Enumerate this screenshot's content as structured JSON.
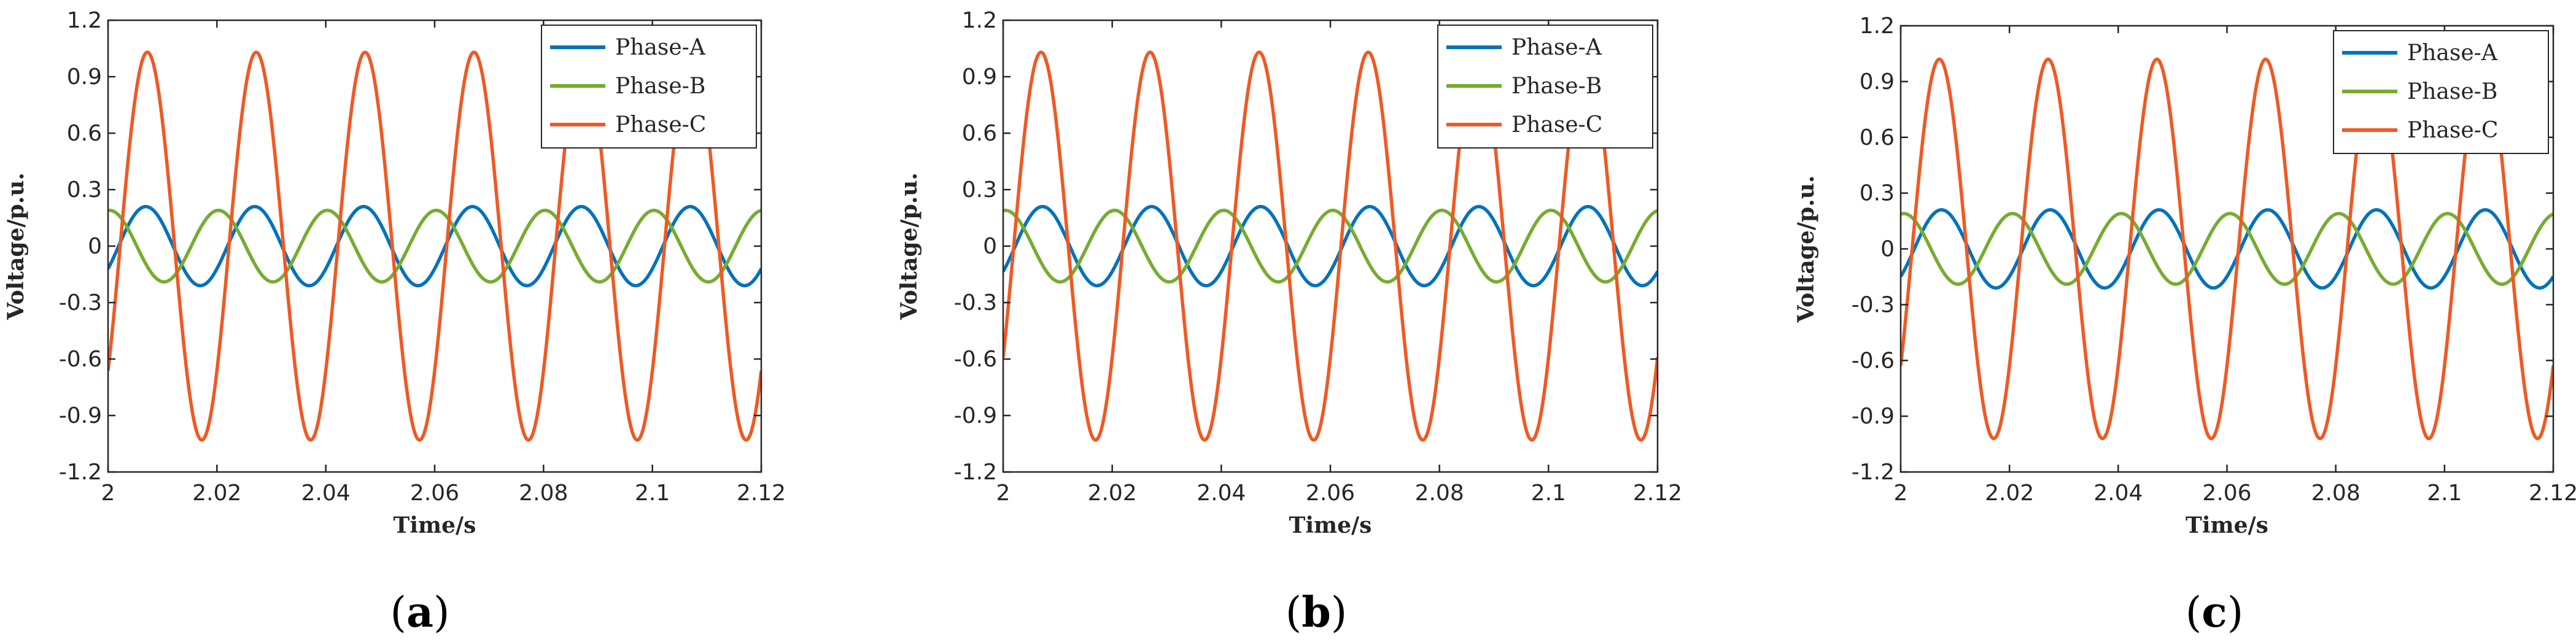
{
  "chart_data": [
    {
      "type": "line",
      "panel": "a",
      "caption": {
        "open": "(",
        "letter": "a",
        "close": ")"
      },
      "xlabel": "Time/s",
      "ylabel": "Voltage/p.u.",
      "xlim": [
        2,
        2.12
      ],
      "ylim": [
        -1.2,
        1.2
      ],
      "xticks": [
        2,
        2.02,
        2.04,
        2.06,
        2.08,
        2.1,
        2.12
      ],
      "xtick_labels": [
        "2",
        "2.02",
        "2.04",
        "2.06",
        "2.08",
        "2.1",
        "2.12"
      ],
      "yticks": [
        -1.2,
        -0.9,
        -0.6,
        -0.3,
        0,
        0.3,
        0.6,
        0.9,
        1.2
      ],
      "ytick_labels": [
        "-1.2",
        "-0.9",
        "-0.6",
        "-0.3",
        "0",
        "0.3",
        "0.6",
        "0.9",
        "1.2"
      ],
      "legend_position": "top-right",
      "series": [
        {
          "name": "Phase-A",
          "color": "#0072BD",
          "amplitude": 0.21,
          "frequency_hz": 50,
          "phase_deg": -35
        },
        {
          "name": "Phase-B",
          "color": "#77AC30",
          "amplitude": 0.19,
          "frequency_hz": 50,
          "phase_deg": 85
        },
        {
          "name": "Phase-C",
          "color": "#EE5A24",
          "amplitude": 1.03,
          "frequency_hz": 50,
          "phase_deg": -40
        }
      ]
    },
    {
      "type": "line",
      "panel": "b",
      "caption": {
        "open": "(",
        "letter": "b",
        "close": ")"
      },
      "xlabel": "Time/s",
      "ylabel": "Voltage/p.u.",
      "xlim": [
        2,
        2.12
      ],
      "ylim": [
        -1.2,
        1.2
      ],
      "xticks": [
        2,
        2.02,
        2.04,
        2.06,
        2.08,
        2.1,
        2.12
      ],
      "xtick_labels": [
        "2",
        "2.02",
        "2.04",
        "2.06",
        "2.08",
        "2.1",
        "2.12"
      ],
      "yticks": [
        -1.2,
        -0.9,
        -0.6,
        -0.3,
        0,
        0.3,
        0.6,
        0.9,
        1.2
      ],
      "ytick_labels": [
        "-1.2",
        "-0.9",
        "-0.6",
        "-0.3",
        "0",
        "0.3",
        "0.6",
        "0.9",
        "1.2"
      ],
      "legend_position": "top-right",
      "series": [
        {
          "name": "Phase-A",
          "color": "#0072BD",
          "amplitude": 0.21,
          "frequency_hz": 50,
          "phase_deg": -40
        },
        {
          "name": "Phase-B",
          "color": "#77AC30",
          "amplitude": 0.19,
          "frequency_hz": 50,
          "phase_deg": 82
        },
        {
          "name": "Phase-C",
          "color": "#EE5A24",
          "amplitude": 1.03,
          "frequency_hz": 50,
          "phase_deg": -35
        }
      ]
    },
    {
      "type": "line",
      "panel": "c",
      "caption": {
        "open": "(",
        "letter": "c",
        "close": ")"
      },
      "xlabel": "Time/s",
      "ylabel": "Voltage/p.u.",
      "xlim": [
        2,
        2.12
      ],
      "ylim": [
        -1.2,
        1.2
      ],
      "xticks": [
        2,
        2.02,
        2.04,
        2.06,
        2.08,
        2.1,
        2.12
      ],
      "xtick_labels": [
        "2",
        "2.02",
        "2.04",
        "2.06",
        "2.08",
        "2.1",
        "2.12"
      ],
      "yticks": [
        -1.2,
        -0.9,
        -0.6,
        -0.3,
        0,
        0.3,
        0.6,
        0.9,
        1.2
      ],
      "ytick_labels": [
        "-1.2",
        "-0.9",
        "-0.6",
        "-0.3",
        "0",
        "0.3",
        "0.6",
        "0.9",
        "1.2"
      ],
      "legend_position": "top-right",
      "series": [
        {
          "name": "Phase-A",
          "color": "#0072BD",
          "amplitude": 0.21,
          "frequency_hz": 50,
          "phase_deg": -45
        },
        {
          "name": "Phase-B",
          "color": "#77AC30",
          "amplitude": 0.19,
          "frequency_hz": 50,
          "phase_deg": 80
        },
        {
          "name": "Phase-C",
          "color": "#EE5A24",
          "amplitude": 1.02,
          "frequency_hz": 50,
          "phase_deg": -38
        }
      ]
    }
  ]
}
